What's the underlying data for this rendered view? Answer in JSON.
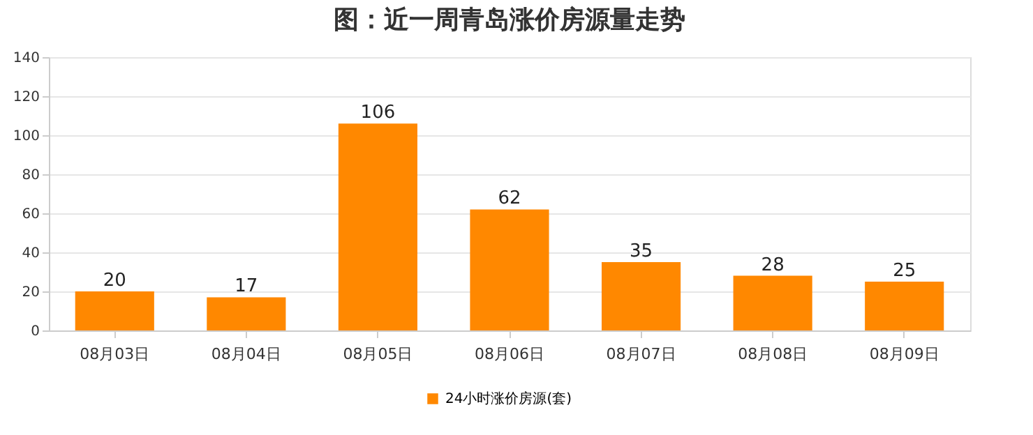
{
  "chart_data": {
    "type": "bar",
    "title": "图：近一周青岛涨价房源量走势",
    "categories": [
      "08月03日",
      "08月04日",
      "08月05日",
      "08月06日",
      "08月07日",
      "08月08日",
      "08月09日"
    ],
    "series": [
      {
        "name": "24小时涨价房源(套)",
        "color": "#ff8800",
        "values": [
          20,
          17,
          106,
          62,
          35,
          28,
          25
        ]
      }
    ],
    "ylim": [
      0,
      140
    ],
    "yticks": [
      0,
      20,
      40,
      60,
      80,
      100,
      120,
      140
    ],
    "grid": "y",
    "legend": "bottom",
    "data_labels": true
  }
}
